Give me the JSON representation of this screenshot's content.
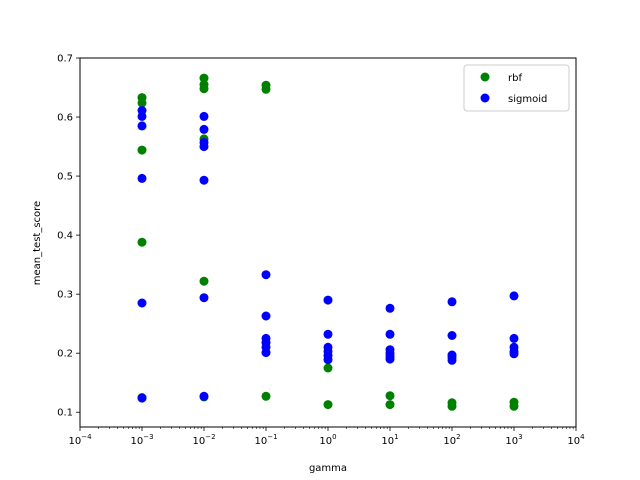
{
  "chart_data": {
    "type": "scatter",
    "xlabel": "gamma",
    "ylabel": "mean_test_score",
    "xscale": "log",
    "xlim": [
      0.0001,
      10000
    ],
    "ylim": [
      0.075,
      0.7
    ],
    "grid": false,
    "legend_position": "top-right",
    "x_ticks": [
      {
        "value": 0.0001,
        "mantissa": "10",
        "exp": "−4"
      },
      {
        "value": 0.001,
        "mantissa": "10",
        "exp": "−3"
      },
      {
        "value": 0.01,
        "mantissa": "10",
        "exp": "−2"
      },
      {
        "value": 0.1,
        "mantissa": "10",
        "exp": "−1"
      },
      {
        "value": 1,
        "mantissa": "10",
        "exp": "0"
      },
      {
        "value": 10,
        "mantissa": "10",
        "exp": "1"
      },
      {
        "value": 100,
        "mantissa": "10",
        "exp": "2"
      },
      {
        "value": 1000,
        "mantissa": "10",
        "exp": "3"
      },
      {
        "value": 10000,
        "mantissa": "10",
        "exp": "4"
      }
    ],
    "y_ticks": [
      {
        "value": 0.1,
        "label": "0.1"
      },
      {
        "value": 0.2,
        "label": "0.2"
      },
      {
        "value": 0.3,
        "label": "0.3"
      },
      {
        "value": 0.4,
        "label": "0.4"
      },
      {
        "value": 0.5,
        "label": "0.5"
      },
      {
        "value": 0.6,
        "label": "0.6"
      },
      {
        "value": 0.7,
        "label": "0.7"
      }
    ],
    "series": [
      {
        "name": "rbf",
        "color": "#008000",
        "points": [
          [
            0.001,
            0.633
          ],
          [
            0.001,
            0.624
          ],
          [
            0.001,
            0.544
          ],
          [
            0.001,
            0.388
          ],
          [
            0.001,
            0.125
          ],
          [
            0.01,
            0.666
          ],
          [
            0.01,
            0.655
          ],
          [
            0.01,
            0.648
          ],
          [
            0.01,
            0.563
          ],
          [
            0.01,
            0.322
          ],
          [
            0.01,
            0.126
          ],
          [
            0.1,
            0.654
          ],
          [
            0.1,
            0.647
          ],
          [
            0.1,
            0.127
          ],
          [
            1,
            0.175
          ],
          [
            1,
            0.113
          ],
          [
            10,
            0.128
          ],
          [
            10,
            0.113
          ],
          [
            100,
            0.116
          ],
          [
            100,
            0.11
          ],
          [
            1000,
            0.117
          ],
          [
            1000,
            0.11
          ]
        ]
      },
      {
        "name": "sigmoid",
        "color": "#0000ff",
        "points": [
          [
            0.001,
            0.611
          ],
          [
            0.001,
            0.601
          ],
          [
            0.001,
            0.585
          ],
          [
            0.001,
            0.496
          ],
          [
            0.001,
            0.285
          ],
          [
            0.001,
            0.124
          ],
          [
            0.01,
            0.601
          ],
          [
            0.01,
            0.579
          ],
          [
            0.01,
            0.557
          ],
          [
            0.01,
            0.55
          ],
          [
            0.01,
            0.493
          ],
          [
            0.01,
            0.294
          ],
          [
            0.01,
            0.127
          ],
          [
            0.1,
            0.333
          ],
          [
            0.1,
            0.263
          ],
          [
            0.1,
            0.225
          ],
          [
            0.1,
            0.218
          ],
          [
            0.1,
            0.21
          ],
          [
            0.1,
            0.201
          ],
          [
            1,
            0.29
          ],
          [
            1,
            0.232
          ],
          [
            1,
            0.21
          ],
          [
            1,
            0.203
          ],
          [
            1,
            0.196
          ],
          [
            1,
            0.189
          ],
          [
            10,
            0.276
          ],
          [
            10,
            0.232
          ],
          [
            10,
            0.206
          ],
          [
            10,
            0.2
          ],
          [
            10,
            0.195
          ],
          [
            10,
            0.19
          ],
          [
            100,
            0.287
          ],
          [
            100,
            0.23
          ],
          [
            100,
            0.197
          ],
          [
            100,
            0.193
          ],
          [
            100,
            0.188
          ],
          [
            1000,
            0.297
          ],
          [
            1000,
            0.225
          ],
          [
            1000,
            0.21
          ],
          [
            1000,
            0.203
          ],
          [
            1000,
            0.199
          ]
        ]
      }
    ]
  }
}
